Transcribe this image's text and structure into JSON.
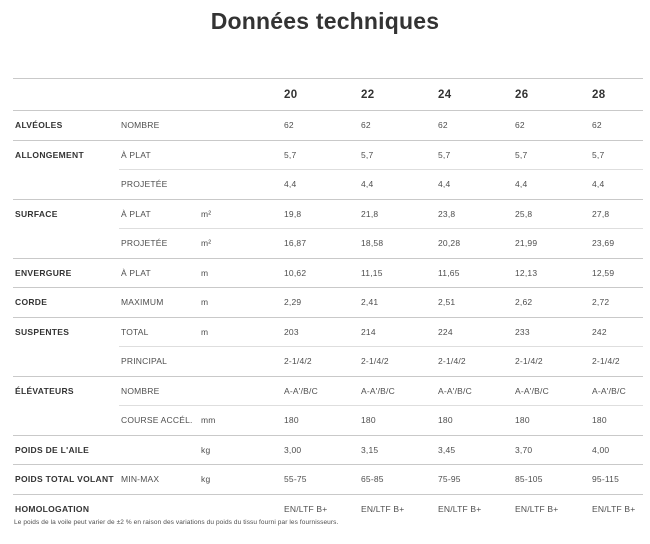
{
  "title": "Données techniques",
  "colors": {
    "background": "#ffffff",
    "text_dark": "#333333",
    "text_mid": "#4e4e4e",
    "divider_full": "#c9c9c9",
    "divider_sub": "#dedede"
  },
  "table": {
    "size_headers": [
      "20",
      "22",
      "24",
      "26",
      "28"
    ],
    "rows": [
      {
        "category": "ALVÉOLES",
        "rowspan": 1,
        "label": "NOMBRE",
        "unit": "",
        "values": [
          "62",
          "62",
          "62",
          "62",
          "62"
        ]
      },
      {
        "category": "ALLONGEMENT",
        "rowspan": 2,
        "label": "À PLAT",
        "unit": "",
        "values": [
          "5,7",
          "5,7",
          "5,7",
          "5,7",
          "5,7"
        ]
      },
      {
        "category": null,
        "label": "PROJETÉE",
        "unit": "",
        "values": [
          "4,4",
          "4,4",
          "4,4",
          "4,4",
          "4,4"
        ]
      },
      {
        "category": "SURFACE",
        "rowspan": 2,
        "label": "À PLAT",
        "unit": "m²",
        "values": [
          "19,8",
          "21,8",
          "23,8",
          "25,8",
          "27,8"
        ]
      },
      {
        "category": null,
        "label": "PROJETÉE",
        "unit": "m²",
        "values": [
          "16,87",
          "18,58",
          "20,28",
          "21,99",
          "23,69"
        ]
      },
      {
        "category": "ENVERGURE",
        "rowspan": 1,
        "label": "À PLAT",
        "unit": "m",
        "values": [
          "10,62",
          "11,15",
          "11,65",
          "12,13",
          "12,59"
        ]
      },
      {
        "category": "CORDE",
        "rowspan": 1,
        "label": "MAXIMUM",
        "unit": "m",
        "values": [
          "2,29",
          "2,41",
          "2,51",
          "2,62",
          "2,72"
        ]
      },
      {
        "category": "SUSPENTES",
        "rowspan": 2,
        "label": "TOTAL",
        "unit": "m",
        "values": [
          "203",
          "214",
          "224",
          "233",
          "242"
        ]
      },
      {
        "category": null,
        "label": "PRINCIPAL",
        "unit": "",
        "values": [
          "2-1/4/2",
          "2-1/4/2",
          "2-1/4/2",
          "2-1/4/2",
          "2-1/4/2"
        ]
      },
      {
        "category": "ÉLÉVATEURS",
        "rowspan": 2,
        "label": "NOMBRE",
        "unit": "",
        "values": [
          "A-A'/B/C",
          "A-A'/B/C",
          "A-A'/B/C",
          "A-A'/B/C",
          "A-A'/B/C"
        ]
      },
      {
        "category": null,
        "label": "COURSE ACCÉL.",
        "unit": "mm",
        "values": [
          "180",
          "180",
          "180",
          "180",
          "180"
        ]
      },
      {
        "category": "POIDS DE L'AILE",
        "rowspan": 1,
        "label": "",
        "unit": "kg",
        "values": [
          "3,00",
          "3,15",
          "3,45",
          "3,70",
          "4,00"
        ]
      },
      {
        "category": "POIDS TOTAL VOLANT",
        "rowspan": 1,
        "label": "MIN-MAX",
        "unit": "kg",
        "values": [
          "55-75",
          "65-85",
          "75-95",
          "85-105",
          "95-115"
        ]
      },
      {
        "category": "HOMOLOGATION",
        "rowspan": 1,
        "label": "",
        "unit": "",
        "values": [
          "EN/LTF B+",
          "EN/LTF B+",
          "EN/LTF B+",
          "EN/LTF B+",
          "EN/LTF B+"
        ]
      }
    ]
  },
  "footnote": "Le poids de la voile peut varier de ±2 % en raison des variations du poids du tissu fourni par les fournisseurs."
}
